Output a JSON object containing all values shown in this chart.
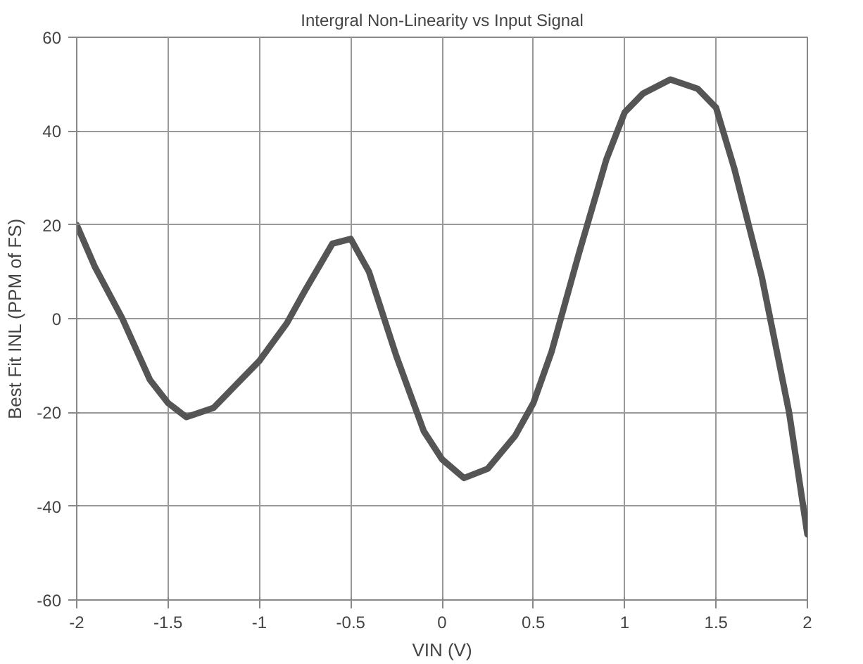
{
  "chart_data": {
    "type": "line",
    "title": "Intergral Non-Linearity vs Input Signal",
    "xlabel": "VIN (V)",
    "ylabel": "Best Fit INL (PPM of FS)",
    "x": [
      -2,
      -1.9,
      -1.75,
      -1.6,
      -1.5,
      -1.4,
      -1.25,
      -1.1,
      -1,
      -0.85,
      -0.75,
      -0.6,
      -0.5,
      -0.4,
      -0.25,
      -0.1,
      0,
      0.12,
      0.25,
      0.4,
      0.5,
      0.6,
      0.75,
      0.9,
      1,
      1.1,
      1.25,
      1.4,
      1.5,
      1.6,
      1.75,
      1.9,
      2
    ],
    "series": [
      {
        "color": "#555555",
        "values": [
          20,
          11,
          0,
          -13,
          -18,
          -21,
          -19,
          -13,
          -9,
          -1,
          6,
          16,
          17,
          10,
          -8,
          -24,
          -30,
          -34,
          -32,
          -25,
          -18,
          -7,
          14,
          34,
          44,
          48,
          51,
          49,
          45,
          32,
          9,
          -20,
          -46
        ]
      }
    ],
    "xlim": [
      -2,
      2
    ],
    "ylim": [
      -60,
      60
    ],
    "xticks": [
      -2,
      -1.5,
      -1,
      -0.5,
      0,
      0.5,
      1,
      1.5,
      2
    ],
    "yticks": [
      -60,
      -40,
      -20,
      0,
      20,
      40,
      60
    ],
    "grid": true,
    "marker": "none",
    "line_style": "solid"
  }
}
